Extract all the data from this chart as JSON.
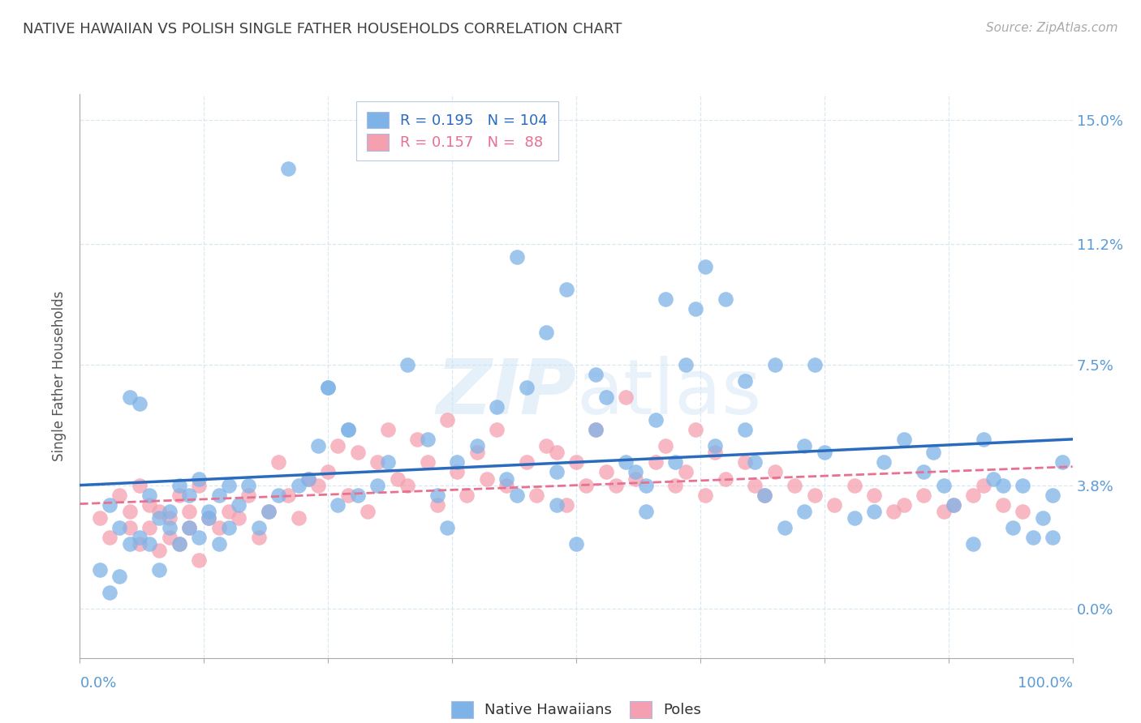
{
  "title": "NATIVE HAWAIIAN VS POLISH SINGLE FATHER HOUSEHOLDS CORRELATION CHART",
  "source": "Source: ZipAtlas.com",
  "ylabel": "Single Father Households",
  "ytick_values": [
    0.0,
    3.8,
    7.5,
    11.2,
    15.0
  ],
  "ytick_labels": [
    "0.0%",
    "3.8%",
    "7.5%",
    "11.2%",
    "15.0%"
  ],
  "xmin": 0.0,
  "xmax": 100.0,
  "ymin": -1.5,
  "ymax": 15.8,
  "legend_blue_R": "0.195",
  "legend_blue_N": "104",
  "legend_pink_R": "0.157",
  "legend_pink_N": " 88",
  "blue_scatter_color": "#7EB3E8",
  "pink_scatter_color": "#F5A0B0",
  "blue_line_color": "#2B6BBD",
  "pink_line_color": "#E87090",
  "title_color": "#404040",
  "ytick_color": "#5B9BD5",
  "xtick_color": "#5B9BD5",
  "background_color": "#FFFFFF",
  "grid_color": "#D8E8F0",
  "watermark_color": "#D0E4F5",
  "blue_x": [
    3,
    4,
    5,
    6,
    6,
    7,
    7,
    8,
    8,
    9,
    9,
    10,
    10,
    11,
    11,
    12,
    12,
    13,
    13,
    14,
    14,
    15,
    15,
    16,
    17,
    18,
    19,
    20,
    21,
    22,
    23,
    24,
    25,
    26,
    27,
    28,
    30,
    31,
    33,
    35,
    36,
    37,
    38,
    40,
    42,
    43,
    44,
    45,
    47,
    48,
    49,
    50,
    52,
    53,
    55,
    56,
    57,
    58,
    59,
    61,
    62,
    63,
    64,
    65,
    67,
    68,
    69,
    70,
    71,
    73,
    74,
    75,
    78,
    80,
    81,
    83,
    85,
    86,
    87,
    88,
    90,
    91,
    92,
    93,
    94,
    95,
    96,
    97,
    98,
    99,
    2,
    3,
    4,
    5,
    25,
    27,
    44,
    48,
    52,
    57,
    60,
    67,
    73,
    98
  ],
  "blue_y": [
    3.2,
    2.5,
    6.5,
    6.3,
    2.2,
    2.0,
    3.5,
    2.8,
    1.2,
    3.0,
    2.5,
    2.0,
    3.8,
    2.5,
    3.5,
    2.2,
    4.0,
    3.0,
    2.8,
    3.5,
    2.0,
    3.8,
    2.5,
    3.2,
    3.8,
    2.5,
    3.0,
    3.5,
    13.5,
    3.8,
    4.0,
    5.0,
    6.8,
    3.2,
    5.5,
    3.5,
    3.8,
    4.5,
    7.5,
    5.2,
    3.5,
    2.5,
    4.5,
    5.0,
    6.2,
    4.0,
    10.8,
    6.8,
    8.5,
    3.2,
    9.8,
    2.0,
    5.5,
    6.5,
    4.5,
    4.2,
    3.0,
    5.8,
    9.5,
    7.5,
    9.2,
    10.5,
    5.0,
    9.5,
    7.0,
    4.5,
    3.5,
    7.5,
    2.5,
    5.0,
    7.5,
    4.8,
    2.8,
    3.0,
    4.5,
    5.2,
    4.2,
    4.8,
    3.8,
    3.2,
    2.0,
    5.2,
    4.0,
    3.8,
    2.5,
    3.8,
    2.2,
    2.8,
    3.5,
    4.5,
    1.2,
    0.5,
    1.0,
    2.0,
    6.8,
    5.5,
    3.5,
    4.2,
    7.2,
    3.8,
    4.5,
    5.5,
    3.0,
    2.2
  ],
  "pink_x": [
    2,
    3,
    4,
    5,
    5,
    6,
    6,
    7,
    7,
    8,
    8,
    9,
    9,
    10,
    10,
    11,
    11,
    12,
    12,
    13,
    14,
    15,
    16,
    17,
    18,
    19,
    20,
    21,
    22,
    23,
    24,
    25,
    26,
    27,
    28,
    29,
    30,
    31,
    32,
    33,
    34,
    35,
    36,
    37,
    38,
    39,
    40,
    41,
    42,
    43,
    45,
    46,
    47,
    48,
    49,
    50,
    51,
    52,
    53,
    54,
    55,
    56,
    58,
    59,
    60,
    61,
    62,
    63,
    64,
    65,
    67,
    68,
    69,
    70,
    72,
    74,
    76,
    78,
    80,
    82,
    83,
    85,
    87,
    88,
    90,
    91,
    93,
    95
  ],
  "pink_y": [
    2.8,
    2.2,
    3.5,
    3.0,
    2.5,
    3.8,
    2.0,
    3.2,
    2.5,
    3.0,
    1.8,
    2.8,
    2.2,
    3.5,
    2.0,
    3.0,
    2.5,
    3.8,
    1.5,
    2.8,
    2.5,
    3.0,
    2.8,
    3.5,
    2.2,
    3.0,
    4.5,
    3.5,
    2.8,
    4.0,
    3.8,
    4.2,
    5.0,
    3.5,
    4.8,
    3.0,
    4.5,
    5.5,
    4.0,
    3.8,
    5.2,
    4.5,
    3.2,
    5.8,
    4.2,
    3.5,
    4.8,
    4.0,
    5.5,
    3.8,
    4.5,
    3.5,
    5.0,
    4.8,
    3.2,
    4.5,
    3.8,
    5.5,
    4.2,
    3.8,
    6.5,
    4.0,
    4.5,
    5.0,
    3.8,
    4.2,
    5.5,
    3.5,
    4.8,
    4.0,
    4.5,
    3.8,
    3.5,
    4.2,
    3.8,
    3.5,
    3.2,
    3.8,
    3.5,
    3.0,
    3.2,
    3.5,
    3.0,
    3.2,
    3.5,
    3.8,
    3.2,
    3.0
  ]
}
